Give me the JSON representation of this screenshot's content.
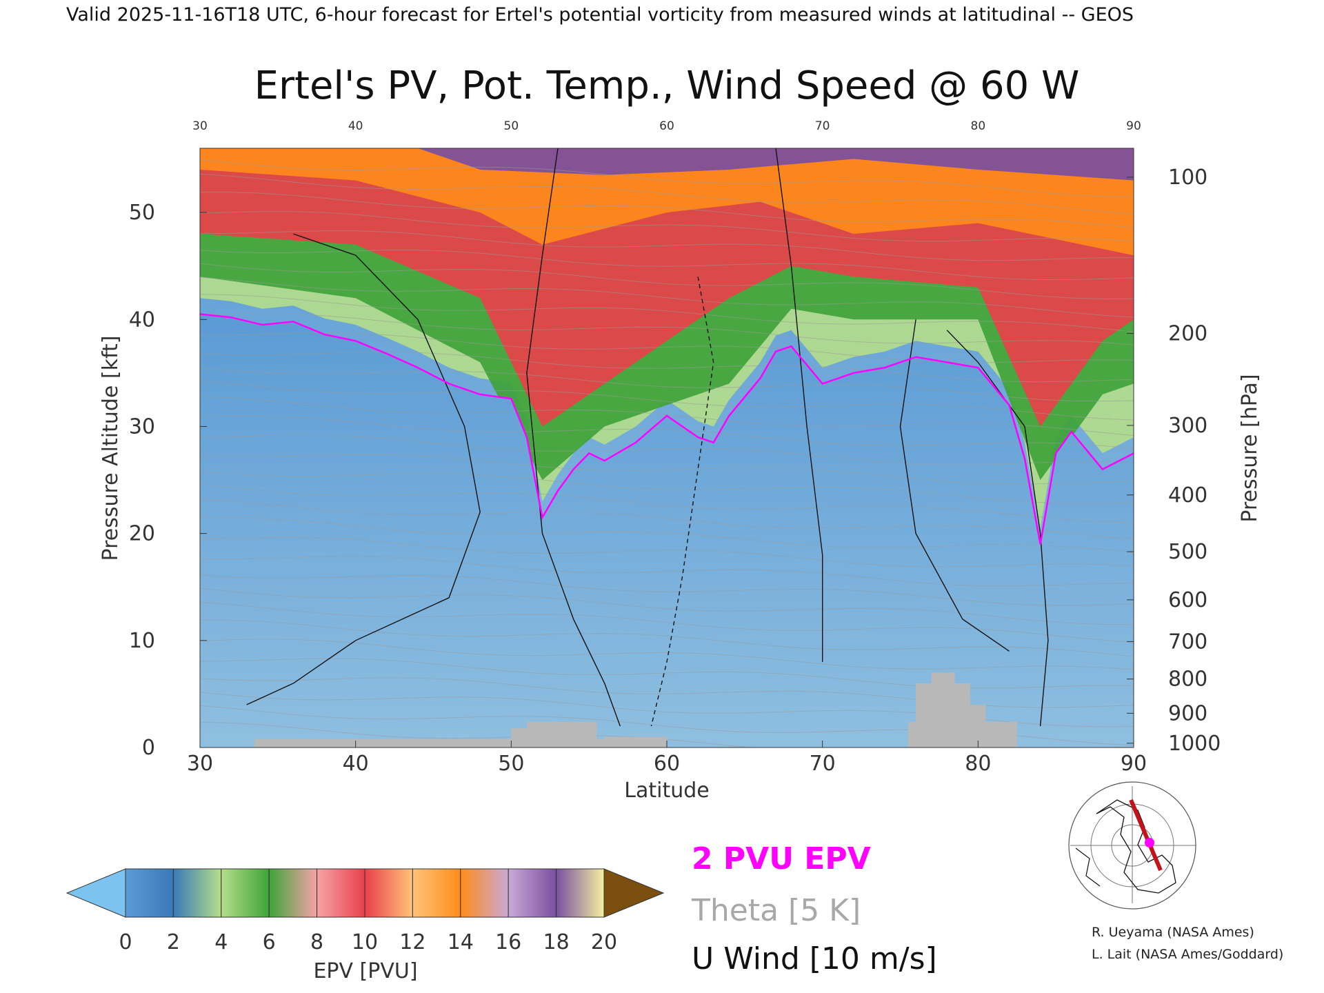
{
  "header": "Valid 2025-11-16T18 UTC, 6-hour forecast for Ertel's potential vorticity from measured winds at latitudinal -- GEOS",
  "chart_data": {
    "type": "heatmap",
    "title": "Ertel's PV, Pot. Temp., Wind Speed @ 60 W",
    "xlabel": "Latitude",
    "ylabel_left": "Pressure Altitude [kft]",
    "ylabel_right": "Pressure [hPa]",
    "xlim": [
      30,
      90
    ],
    "ylim": [
      0,
      56
    ],
    "x_ticks": [
      30,
      40,
      50,
      60,
      70,
      80,
      90
    ],
    "x_tick_labels": [
      "30",
      "40",
      "50",
      "60",
      "70",
      "80",
      "90"
    ],
    "y_ticks": [
      0,
      10,
      20,
      30,
      40,
      50
    ],
    "y_tick_labels": [
      "0",
      "10",
      "20",
      "30",
      "40",
      "50"
    ],
    "pressure_ticks": [
      {
        "label": "100",
        "kft": 53.3
      },
      {
        "label": "200",
        "kft": 38.7
      },
      {
        "label": "300",
        "kft": 30.1
      },
      {
        "label": "400",
        "kft": 23.6
      },
      {
        "label": "500",
        "kft": 18.3
      },
      {
        "label": "600",
        "kft": 13.8
      },
      {
        "label": "700",
        "kft": 9.9
      },
      {
        "label": "800",
        "kft": 6.4
      },
      {
        "label": "900",
        "kft": 3.2
      },
      {
        "label": "1000",
        "kft": 0.4
      }
    ],
    "tropopause_2pvu_kft": [
      [
        30,
        40.5
      ],
      [
        32,
        40.2
      ],
      [
        34,
        39.5
      ],
      [
        36,
        39.8
      ],
      [
        38,
        38.6
      ],
      [
        40,
        38.0
      ],
      [
        42,
        36.8
      ],
      [
        44,
        35.5
      ],
      [
        46,
        34.0
      ],
      [
        48,
        33.0
      ],
      [
        50,
        32.6
      ],
      [
        51,
        29.0
      ],
      [
        52,
        21.5
      ],
      [
        53,
        24.0
      ],
      [
        54,
        26.0
      ],
      [
        55,
        27.5
      ],
      [
        56,
        26.8
      ],
      [
        58,
        28.5
      ],
      [
        60,
        31.0
      ],
      [
        62,
        29.0
      ],
      [
        63,
        28.5
      ],
      [
        64,
        31.0
      ],
      [
        66,
        34.5
      ],
      [
        67,
        37.0
      ],
      [
        68,
        37.5
      ],
      [
        70,
        34.0
      ],
      [
        72,
        35.0
      ],
      [
        74,
        35.5
      ],
      [
        76,
        36.5
      ],
      [
        78,
        36.0
      ],
      [
        80,
        35.5
      ],
      [
        82,
        32.0
      ],
      [
        83,
        27.0
      ],
      [
        84,
        19.0
      ],
      [
        85,
        27.5
      ],
      [
        86,
        29.5
      ],
      [
        88,
        26.0
      ],
      [
        90,
        27.5
      ]
    ],
    "pv_top_bands_kft": [
      {
        "name": "green",
        "color": "#3fa33a",
        "base": [
          [
            30,
            44
          ],
          [
            40,
            42
          ],
          [
            48,
            36
          ],
          [
            52,
            25
          ],
          [
            56,
            30
          ],
          [
            60,
            32
          ],
          [
            64,
            34
          ],
          [
            68,
            41
          ],
          [
            72,
            40
          ],
          [
            80,
            40
          ],
          [
            84,
            25
          ],
          [
            88,
            33
          ],
          [
            90,
            34
          ]
        ]
      },
      {
        "name": "red",
        "color": "#e8414a",
        "base": [
          [
            30,
            48
          ],
          [
            40,
            47
          ],
          [
            48,
            42
          ],
          [
            52,
            30
          ],
          [
            56,
            34
          ],
          [
            60,
            38
          ],
          [
            64,
            42
          ],
          [
            68,
            45
          ],
          [
            72,
            44
          ],
          [
            80,
            43
          ],
          [
            84,
            30
          ],
          [
            88,
            38
          ],
          [
            90,
            40
          ]
        ]
      },
      {
        "name": "orange",
        "color": "#ff8c1a",
        "base": [
          [
            30,
            54
          ],
          [
            40,
            53
          ],
          [
            48,
            50
          ],
          [
            52,
            47
          ],
          [
            60,
            50
          ],
          [
            66,
            51
          ],
          [
            72,
            48
          ],
          [
            80,
            49
          ],
          [
            90,
            46
          ]
        ]
      },
      {
        "name": "purple",
        "color": "#7a4fa0",
        "base": [
          [
            30,
            56
          ],
          [
            44,
            56
          ],
          [
            48,
            54
          ],
          [
            56,
            53.5
          ],
          [
            64,
            54
          ],
          [
            72,
            55
          ],
          [
            80,
            54
          ],
          [
            90,
            53
          ]
        ]
      }
    ],
    "terrain_kft": [
      [
        33.5,
        0
      ],
      [
        33.5,
        0.8
      ],
      [
        50,
        0.8
      ],
      [
        50,
        1.8
      ],
      [
        51,
        1.8
      ],
      [
        51,
        2.4
      ],
      [
        55.5,
        2.4
      ],
      [
        55.5,
        0.8
      ],
      [
        56,
        0.8
      ],
      [
        56,
        1.0
      ],
      [
        59,
        1.0
      ],
      [
        60,
        1.0
      ],
      [
        60,
        0
      ],
      [
        75.5,
        0
      ],
      [
        75.5,
        2.4
      ],
      [
        76,
        2.4
      ],
      [
        76,
        6.0
      ],
      [
        77,
        6.0
      ],
      [
        77,
        7.0
      ],
      [
        78.5,
        7.0
      ],
      [
        78.5,
        6.0
      ],
      [
        79.5,
        6.0
      ],
      [
        79.5,
        4.0
      ],
      [
        80.5,
        4.0
      ],
      [
        80.5,
        2.4
      ],
      [
        82.5,
        2.4
      ],
      [
        82.5,
        0
      ]
    ],
    "colorbar": {
      "label": "EPV [PVU]",
      "ticks": [
        "0",
        "2",
        "4",
        "6",
        "8",
        "10",
        "12",
        "14",
        "16",
        "18",
        "20"
      ],
      "colors": [
        "#5b9bd5",
        "#3a79b8",
        "#b5de8a",
        "#3fa33a",
        "#f6a3a8",
        "#e8414a",
        "#ffc37a",
        "#ff8c1a",
        "#c9a9d8",
        "#7a4fa0",
        "#f5f0a0"
      ],
      "under_color": "#7cc3f0",
      "over_color": "#7a4f10"
    },
    "legend": [
      {
        "label": "2 PVU EPV",
        "color": "#ff00ff"
      },
      {
        "label": "Theta [5 K]",
        "color": "#a8a8a8"
      },
      {
        "label": "U Wind [10 m/s]",
        "color": "#111111"
      }
    ],
    "grid": false,
    "legend_placement": "bottom-center"
  },
  "credits": [
    "R. Ueyama (NASA Ames)",
    "L. Lait (NASA Ames/Goddard)"
  ],
  "inset_map": "polar-map-icon"
}
